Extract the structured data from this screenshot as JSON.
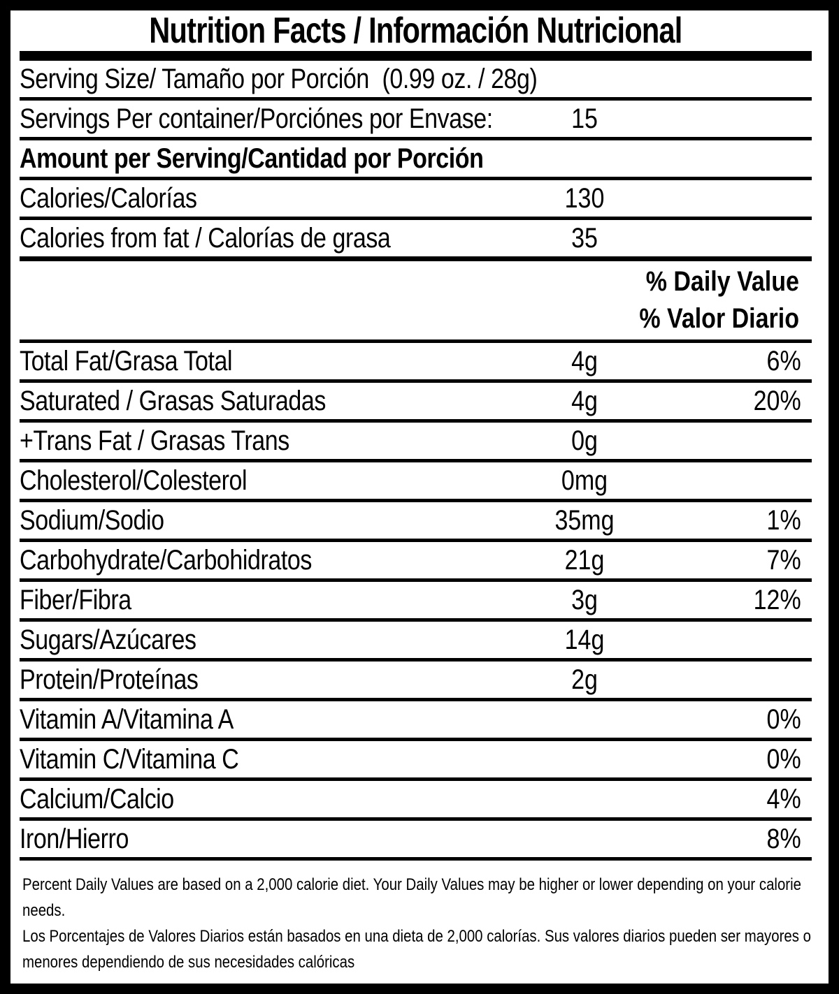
{
  "title": "Nutrition Facts / Información Nutricional",
  "serving": {
    "size_label": "Serving Size/ Tamaño por Porción",
    "size_value": "(0.99 oz. / 28g)",
    "per_container_label": "Servings Per container/Porciónes por Envase:",
    "per_container_value": "15"
  },
  "amount_per_serving": {
    "header": "Amount per Serving/Cantidad por Porción",
    "calories_label": "Calories/Calorías",
    "calories_value": "130",
    "calories_from_fat_label": "Calories from fat / Calorías de grasa",
    "calories_from_fat_value": "35"
  },
  "daily_value_header": {
    "line_en": "% Daily Value",
    "line_es": "% Valor Diario"
  },
  "nutrients": [
    {
      "label": "Total Fat/Grasa Total",
      "amount": "4g",
      "pct": "6%"
    },
    {
      "label": "Saturated / Grasas Saturadas",
      "amount": "4g",
      "pct": "20%"
    },
    {
      "label": "+Trans Fat / Grasas Trans",
      "amount": "0g",
      "pct": ""
    },
    {
      "label": "Cholesterol/Colesterol",
      "amount": "0mg",
      "pct": ""
    },
    {
      "label": "Sodium/Sodio",
      "amount": "35mg",
      "pct": "1%"
    },
    {
      "label": "Carbohydrate/Carbohidratos",
      "amount": "21g",
      "pct": "7%"
    },
    {
      "label": "Fiber/Fibra",
      "amount": "3g",
      "pct": "12%"
    },
    {
      "label": "Sugars/Azúcares",
      "amount": "14g",
      "pct": ""
    },
    {
      "label": "Protein/Proteínas",
      "amount": "2g",
      "pct": ""
    },
    {
      "label": "Vitamin A/Vitamina A",
      "amount": "",
      "pct": "0%"
    },
    {
      "label": "Vitamin C/Vitamina C",
      "amount": "",
      "pct": "0%"
    },
    {
      "label": "Calcium/Calcio",
      "amount": "",
      "pct": "4%"
    },
    {
      "label": "Iron/Hierro",
      "amount": "",
      "pct": "8%"
    }
  ],
  "footnotes": {
    "en": "Percent Daily Values are based on a 2,000 calorie diet. Your Daily Values may be higher or lower depending on your calorie needs.",
    "es": "Los Porcentajes de Valores Diarios están basados en una dieta de 2,000 calorías. Sus valores diarios pueden ser mayores o menores dependiendo de sus necesidades calóricas"
  },
  "colors": {
    "ink": "#000000",
    "background": "#ffffff"
  }
}
